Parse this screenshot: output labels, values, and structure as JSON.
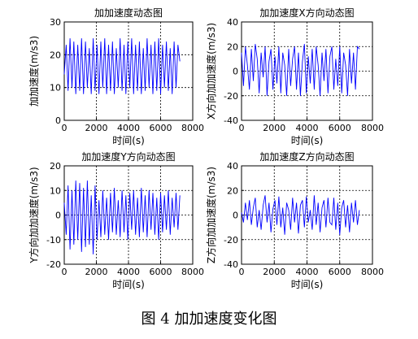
{
  "figure": {
    "caption": "图 4  加加速度变化图",
    "line_color": "#0000ff",
    "subplots": [
      {
        "title": "加加速度动态图",
        "xlabel": "时间(s)",
        "ylabel": "加加速度(m/s3)",
        "xticks": [
          "0",
          "2000",
          "4000",
          "6000",
          "8000"
        ],
        "yticks": [
          "30",
          "20",
          "10",
          "0"
        ]
      },
      {
        "title": "加加速度X方向动态图",
        "xlabel": "时间(s)",
        "ylabel": "X方向加加速度(m/s3)",
        "xticks": [
          "0",
          "2000",
          "4000",
          "6000",
          "8000"
        ],
        "yticks": [
          "40",
          "20",
          "0",
          "-20",
          "-40"
        ]
      },
      {
        "title": "加加速度Y方向动态图",
        "xlabel": "时间(s)",
        "ylabel": "Y方向加加速度(m/s3)",
        "xticks": [
          "0",
          "2000",
          "4000",
          "6000",
          "8000"
        ],
        "yticks": [
          "20",
          "10",
          "0",
          "-10",
          "-20"
        ]
      },
      {
        "title": "加加速度Z方向动态图",
        "xlabel": "时间(s)",
        "ylabel": "Z方向加加速度(m/s3)",
        "xticks": [
          "0",
          "2000",
          "4000",
          "6000",
          "8000"
        ],
        "yticks": [
          "40",
          "20",
          "0",
          "-20",
          "-40"
        ]
      }
    ]
  },
  "chart_data": [
    {
      "type": "line",
      "title": "加加速度动态图",
      "xlabel": "时间(s)",
      "ylabel": "加加速度(m/s3)",
      "xlim": [
        0,
        8000
      ],
      "ylim": [
        0,
        30
      ],
      "grid": true,
      "series": [
        {
          "x": [
            0,
            120,
            240,
            360,
            480,
            600,
            720,
            840,
            960,
            1080,
            1200,
            1320,
            1440,
            1560,
            1680,
            1800,
            1920,
            2040,
            2160,
            2280,
            2400,
            2520,
            2640,
            2760,
            2880,
            3000,
            3120,
            3240,
            3360,
            3480,
            3600,
            3720,
            3840,
            3960,
            4080,
            4200,
            4320,
            4440,
            4560,
            4680,
            4800,
            4920,
            5040,
            5160,
            5280,
            5400,
            5520,
            5640,
            5760,
            5880,
            6000,
            6120,
            6240,
            6360,
            6480,
            6600,
            6720,
            6840,
            6960,
            7080,
            7200
          ],
          "y": [
            14,
            23,
            9,
            25,
            10,
            24,
            8,
            23,
            9,
            25,
            8,
            24,
            10,
            22,
            8,
            25,
            9,
            23,
            8,
            24,
            10,
            25,
            8,
            23,
            9,
            24,
            8,
            22,
            10,
            25,
            9,
            23,
            8,
            24,
            10,
            25,
            8,
            23,
            9,
            24,
            8,
            22,
            9,
            25,
            10,
            23,
            8,
            24,
            9,
            25,
            8,
            23,
            10,
            24,
            9,
            22,
            8,
            24,
            10,
            23,
            18
          ]
        }
      ]
    },
    {
      "type": "line",
      "title": "加加速度X方向动态图",
      "xlabel": "时间(s)",
      "ylabel": "X方向加加速度(m/s3)",
      "xlim": [
        0,
        8000
      ],
      "ylim": [
        -40,
        40
      ],
      "grid": true,
      "series": [
        {
          "x": [
            0,
            120,
            240,
            360,
            480,
            600,
            720,
            840,
            960,
            1080,
            1200,
            1320,
            1440,
            1560,
            1680,
            1800,
            1920,
            2040,
            2160,
            2280,
            2400,
            2520,
            2640,
            2760,
            2880,
            3000,
            3120,
            3240,
            3360,
            3480,
            3600,
            3720,
            3840,
            3960,
            4080,
            4200,
            4320,
            4440,
            4560,
            4680,
            4800,
            4920,
            5040,
            5160,
            5280,
            5400,
            5520,
            5640,
            5760,
            5880,
            6000,
            6120,
            6240,
            6360,
            6480,
            6600,
            6720,
            6840,
            6960,
            7080,
            7200
          ],
          "y": [
            15,
            -12,
            20,
            5,
            -15,
            18,
            -8,
            22,
            10,
            -18,
            15,
            -5,
            20,
            -20,
            8,
            18,
            -15,
            12,
            -10,
            20,
            -18,
            15,
            5,
            -20,
            18,
            -12,
            10,
            20,
            -15,
            15,
            -20,
            8,
            22,
            -18,
            12,
            -10,
            18,
            -15,
            20,
            5,
            -20,
            15,
            -8,
            18,
            -18,
            12,
            20,
            -15,
            10,
            -12,
            20,
            -18,
            15,
            5,
            -20,
            18,
            -10,
            15,
            -15,
            20,
            18
          ]
        }
      ]
    },
    {
      "type": "line",
      "title": "加加速度Y方向动态图",
      "xlabel": "时间(s)",
      "ylabel": "Y方向加加速度(m/s3)",
      "xlim": [
        0,
        8000
      ],
      "ylim": [
        -20,
        20
      ],
      "grid": true,
      "series": [
        {
          "x": [
            0,
            120,
            240,
            360,
            480,
            600,
            720,
            840,
            960,
            1080,
            1200,
            1320,
            1440,
            1560,
            1680,
            1800,
            1920,
            2040,
            2160,
            2280,
            2400,
            2520,
            2640,
            2760,
            2880,
            3000,
            3120,
            3240,
            3360,
            3480,
            3600,
            3720,
            3840,
            3960,
            4080,
            4200,
            4320,
            4440,
            4560,
            4680,
            4800,
            4920,
            5040,
            5160,
            5280,
            5400,
            5520,
            5640,
            5760,
            5880,
            6000,
            6120,
            6240,
            6360,
            6480,
            6600,
            6720,
            6840,
            6960,
            7080,
            7200
          ],
          "y": [
            5,
            -8,
            12,
            -14,
            10,
            -12,
            14,
            -10,
            13,
            -15,
            11,
            -13,
            14,
            -12,
            8,
            -16,
            12,
            -10,
            6,
            -9,
            10,
            -8,
            7,
            -10,
            9,
            -7,
            11,
            -8,
            6,
            -9,
            10,
            -7,
            8,
            -10,
            9,
            -6,
            10,
            -8,
            7,
            -9,
            11,
            -7,
            8,
            -9,
            10,
            -6,
            9,
            -8,
            7,
            -10,
            9,
            -7,
            8,
            -6,
            10,
            -8,
            7,
            -5,
            9,
            -6,
            8
          ]
        }
      ]
    },
    {
      "type": "line",
      "title": "加加速度Z方向动态图",
      "xlabel": "时间(s)",
      "ylabel": "Z方向加加速度(m/s3)",
      "xlim": [
        0,
        8000
      ],
      "ylim": [
        -40,
        40
      ],
      "grid": true,
      "series": [
        {
          "x": [
            0,
            120,
            240,
            360,
            480,
            600,
            720,
            840,
            960,
            1080,
            1200,
            1320,
            1440,
            1560,
            1680,
            1800,
            1920,
            2040,
            2160,
            2280,
            2400,
            2520,
            2640,
            2760,
            2880,
            3000,
            3120,
            3240,
            3360,
            3480,
            3600,
            3720,
            3840,
            3960,
            4080,
            4200,
            4320,
            4440,
            4560,
            4680,
            4800,
            4920,
            5040,
            5160,
            5280,
            5400,
            5520,
            5640,
            5760,
            5880,
            6000,
            6120,
            6240,
            6360,
            6480,
            6600,
            6720,
            6840,
            6960,
            7080,
            7200
          ],
          "y": [
            2,
            -6,
            10,
            -4,
            12,
            -8,
            6,
            14,
            -10,
            4,
            -12,
            8,
            16,
            -6,
            10,
            -14,
            5,
            12,
            -8,
            15,
            -10,
            6,
            -16,
            10,
            4,
            -12,
            14,
            -6,
            10,
            -15,
            8,
            12,
            -10,
            15,
            -6,
            4,
            -12,
            16,
            -8,
            10,
            -14,
            6,
            12,
            -10,
            14,
            -6,
            -8,
            14,
            -12,
            10,
            -16,
            6,
            12,
            -10,
            8,
            -14,
            10,
            -6,
            12,
            -8,
            4
          ]
        }
      ]
    }
  ]
}
